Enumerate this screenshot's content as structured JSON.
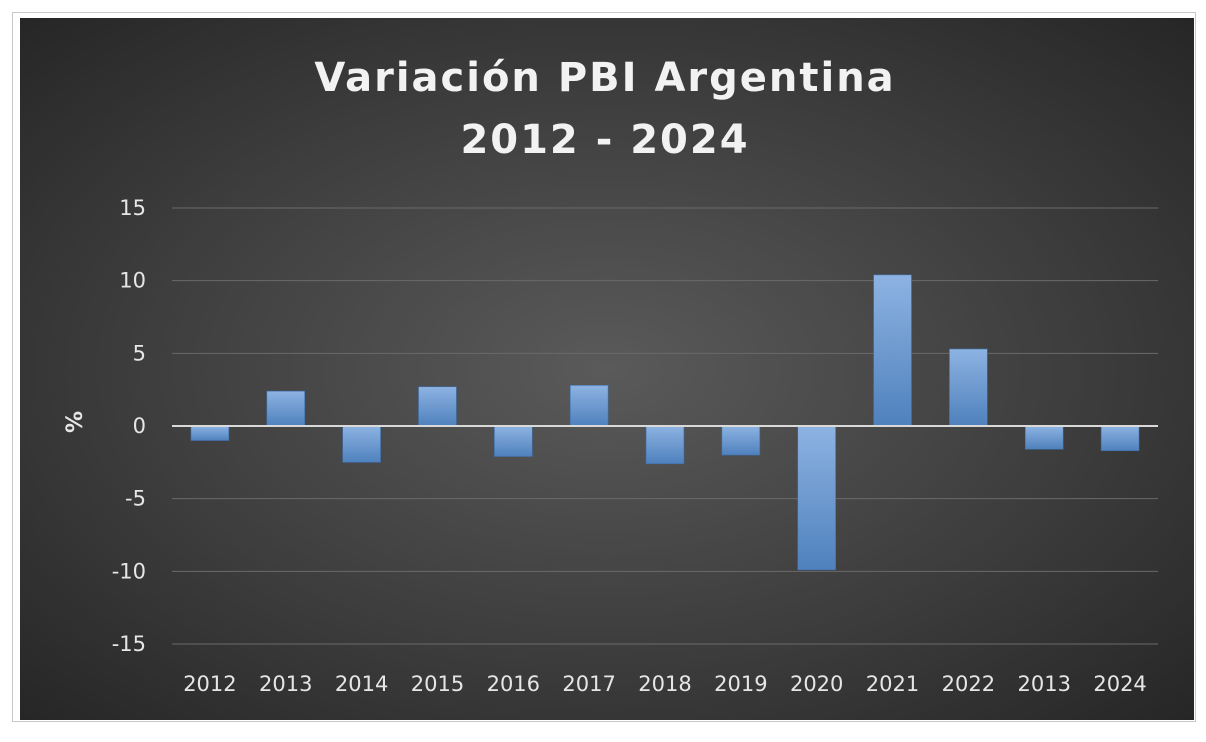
{
  "chart_data": {
    "type": "bar",
    "title_lines": [
      "Variación PBI Argentina",
      "2012 - 2024"
    ],
    "xlabel": "",
    "ylabel": "%",
    "ylim": [
      -15,
      15
    ],
    "yticks": [
      15,
      10,
      5,
      0,
      -5,
      -10,
      -15
    ],
    "ytick_labels": [
      "15",
      "10",
      "5",
      "0",
      "-5",
      "-10",
      "-15"
    ],
    "categories": [
      "2012",
      "2013",
      "2014",
      "2015",
      "2016",
      "2017",
      "2018",
      "2019",
      "2020",
      "2021",
      "2022",
      "2013",
      "2024"
    ],
    "values": [
      -1.0,
      2.4,
      -2.5,
      2.7,
      -2.1,
      2.8,
      -2.6,
      -2.0,
      -9.9,
      10.4,
      5.3,
      -1.6,
      -1.7
    ],
    "grid": true,
    "legend": "none",
    "colors": {
      "background_center": "#5a5a5a",
      "background_edge": "#262626",
      "bar_top": "#8db3e2",
      "bar_bottom": "#4f81bd",
      "gridline": "#6a6a6a",
      "zero_line": "#d9d9d9",
      "text": "#e6e6e6"
    }
  }
}
